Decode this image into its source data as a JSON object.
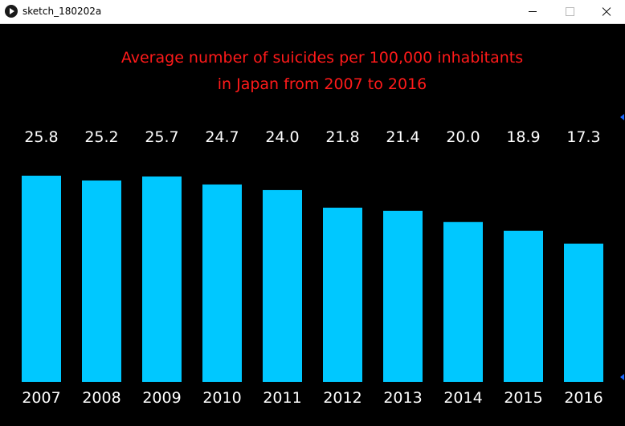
{
  "window": {
    "title": "sketch_180202a",
    "icon": "processing-play-icon"
  },
  "colors": {
    "background": "#000000",
    "bar": "#00c8ff",
    "title": "#ff1a1a",
    "labels": "#ffffff"
  },
  "chart_data": {
    "type": "bar",
    "title_lines": [
      "Average number of suicides per 100,000 inhabitants",
      "in Japan from 2007 to 2016"
    ],
    "categories": [
      "2007",
      "2008",
      "2009",
      "2010",
      "2011",
      "2012",
      "2013",
      "2014",
      "2015",
      "2016"
    ],
    "values": [
      25.8,
      25.2,
      25.7,
      24.7,
      24.0,
      21.8,
      21.4,
      20.0,
      18.9,
      17.3
    ],
    "value_labels": [
      "25.8",
      "25.2",
      "25.7",
      "24.7",
      "24.0",
      "21.8",
      "21.4",
      "20.0",
      "18.9",
      "17.3"
    ],
    "ylim": [
      0,
      25.8
    ],
    "grid": false,
    "legend": "none"
  }
}
